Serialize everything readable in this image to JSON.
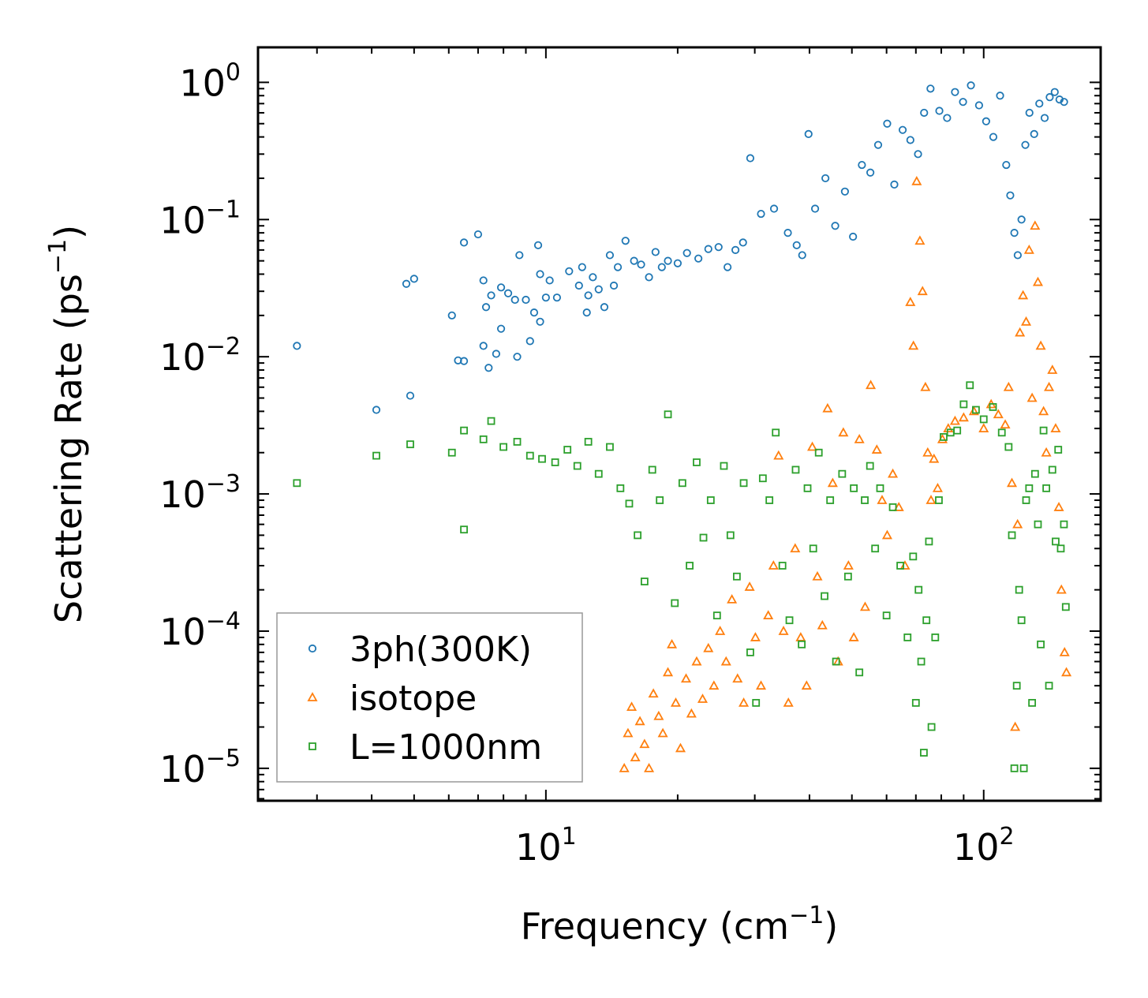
{
  "chart_data": {
    "type": "scatter",
    "title": "",
    "xlabel": "Frequency (cm",
    "xlabel_exp": "−1",
    "xlabel_tail": ")",
    "ylabel": "Scattering Rate (ps",
    "ylabel_exp": "−1",
    "ylabel_tail": ")",
    "xscale": "log",
    "yscale": "log",
    "xlim": [
      2.2,
      185
    ],
    "ylim": [
      5.8e-06,
      1.8
    ],
    "x_ticks": [
      {
        "value": 10,
        "base": "10",
        "exp": "1"
      },
      {
        "value": 100,
        "base": "10",
        "exp": "2"
      }
    ],
    "y_ticks": [
      {
        "value": 1,
        "base": "10",
        "exp": "0"
      },
      {
        "value": 0.1,
        "base": "10",
        "exp": "−1"
      },
      {
        "value": 0.01,
        "base": "10",
        "exp": "−2"
      },
      {
        "value": 0.001,
        "base": "10",
        "exp": "−3"
      },
      {
        "value": 0.0001,
        "base": "10",
        "exp": "−4"
      },
      {
        "value": 1e-05,
        "base": "10",
        "exp": "−5"
      }
    ],
    "legend_position": "lower-left",
    "series": [
      {
        "name": "3ph(300K)",
        "marker": "circle",
        "color": "#1f77b4",
        "points": [
          [
            2.7,
            0.012
          ],
          [
            4.1,
            0.0041
          ],
          [
            4.8,
            0.034
          ],
          [
            4.9,
            0.0052
          ],
          [
            5.0,
            0.037
          ],
          [
            6.1,
            0.02
          ],
          [
            6.3,
            0.0094
          ],
          [
            6.5,
            0.0093
          ],
          [
            6.5,
            0.068
          ],
          [
            7.0,
            0.078
          ],
          [
            7.2,
            0.036
          ],
          [
            7.2,
            0.012
          ],
          [
            7.3,
            0.023
          ],
          [
            7.4,
            0.0083
          ],
          [
            7.5,
            0.028
          ],
          [
            7.7,
            0.0105
          ],
          [
            7.9,
            0.016
          ],
          [
            7.9,
            0.032
          ],
          [
            8.2,
            0.029
          ],
          [
            8.5,
            0.026
          ],
          [
            8.6,
            0.01
          ],
          [
            8.7,
            0.055
          ],
          [
            9.0,
            0.026
          ],
          [
            9.2,
            0.013
          ],
          [
            9.4,
            0.021
          ],
          [
            9.6,
            0.065
          ],
          [
            9.7,
            0.04
          ],
          [
            9.7,
            0.018
          ],
          [
            10.0,
            0.027
          ],
          [
            10.2,
            0.036
          ],
          [
            10.6,
            0.027
          ],
          [
            11.3,
            0.042
          ],
          [
            11.9,
            0.033
          ],
          [
            12.1,
            0.045
          ],
          [
            12.4,
            0.021
          ],
          [
            12.5,
            0.028
          ],
          [
            12.8,
            0.038
          ],
          [
            13.2,
            0.031
          ],
          [
            13.6,
            0.023
          ],
          [
            14.0,
            0.055
          ],
          [
            14.3,
            0.033
          ],
          [
            14.6,
            0.045
          ],
          [
            15.2,
            0.07
          ],
          [
            15.9,
            0.05
          ],
          [
            16.5,
            0.047
          ],
          [
            17.2,
            0.038
          ],
          [
            17.8,
            0.058
          ],
          [
            18.4,
            0.045
          ],
          [
            19.0,
            0.05
          ],
          [
            20.0,
            0.048
          ],
          [
            21.0,
            0.057
          ],
          [
            22.3,
            0.052
          ],
          [
            23.5,
            0.061
          ],
          [
            24.8,
            0.063
          ],
          [
            26.0,
            0.045
          ],
          [
            27.1,
            0.06
          ],
          [
            28.2,
            0.068
          ],
          [
            29.3,
            0.28
          ],
          [
            31.0,
            0.11
          ],
          [
            33.2,
            0.12
          ],
          [
            35.7,
            0.08
          ],
          [
            37.4,
            0.065
          ],
          [
            38.5,
            0.055
          ],
          [
            39.8,
            0.42
          ],
          [
            41.2,
            0.12
          ],
          [
            43.5,
            0.2
          ],
          [
            45.8,
            0.09
          ],
          [
            48.2,
            0.16
          ],
          [
            50.3,
            0.075
          ],
          [
            52.7,
            0.25
          ],
          [
            55.1,
            0.22
          ],
          [
            57.4,
            0.35
          ],
          [
            60.2,
            0.5
          ],
          [
            62.5,
            0.18
          ],
          [
            65.3,
            0.45
          ],
          [
            68.0,
            0.38
          ],
          [
            70.8,
            0.3
          ],
          [
            73.1,
            0.6
          ],
          [
            75.6,
            0.9
          ],
          [
            79.2,
            0.62
          ],
          [
            82.5,
            0.55
          ],
          [
            86.0,
            0.85
          ],
          [
            89.7,
            0.72
          ],
          [
            93.5,
            0.95
          ],
          [
            97.6,
            0.68
          ],
          [
            101.3,
            0.52
          ],
          [
            105.2,
            0.4
          ],
          [
            109.0,
            0.8
          ],
          [
            112.6,
            0.25
          ],
          [
            115.0,
            0.15
          ],
          [
            117.5,
            0.08
          ],
          [
            119.6,
            0.055
          ],
          [
            122.0,
            0.1
          ],
          [
            124.5,
            0.35
          ],
          [
            127.2,
            0.6
          ],
          [
            130.4,
            0.42
          ],
          [
            134.0,
            0.7
          ],
          [
            137.8,
            0.55
          ],
          [
            141.5,
            0.78
          ],
          [
            145.3,
            0.85
          ],
          [
            149.0,
            0.75
          ],
          [
            152.6,
            0.72
          ]
        ]
      },
      {
        "name": "isotope",
        "marker": "triangle",
        "color": "#ff7f0e",
        "points": [
          [
            15.1,
            1e-05
          ],
          [
            15.4,
            1.8e-05
          ],
          [
            15.7,
            2.8e-05
          ],
          [
            16.0,
            1.2e-05
          ],
          [
            16.4,
            2.2e-05
          ],
          [
            16.8,
            1.5e-05
          ],
          [
            17.2,
            1e-05
          ],
          [
            17.6,
            3.5e-05
          ],
          [
            18.1,
            2.4e-05
          ],
          [
            18.5,
            1.8e-05
          ],
          [
            19.0,
            5e-05
          ],
          [
            19.4,
            8e-05
          ],
          [
            19.8,
            3e-05
          ],
          [
            20.3,
            1.4e-05
          ],
          [
            20.9,
            4.5e-05
          ],
          [
            21.5,
            2.5e-05
          ],
          [
            22.1,
            6e-05
          ],
          [
            22.8,
            3.2e-05
          ],
          [
            23.5,
            7.5e-05
          ],
          [
            24.2,
            4e-05
          ],
          [
            25.0,
            0.0001
          ],
          [
            25.8,
            6e-05
          ],
          [
            26.6,
            0.00017
          ],
          [
            27.4,
            4.5e-05
          ],
          [
            28.3,
            3e-05
          ],
          [
            29.2,
            0.00021
          ],
          [
            30.1,
            9e-05
          ],
          [
            31.0,
            4e-05
          ],
          [
            32.2,
            0.00013
          ],
          [
            33.1,
            0.0003
          ],
          [
            34.0,
            0.0019
          ],
          [
            34.9,
            0.0001
          ],
          [
            35.8,
            3e-05
          ],
          [
            37.1,
            0.0004
          ],
          [
            38.2,
            9e-05
          ],
          [
            39.4,
            4e-05
          ],
          [
            40.6,
            0.0022
          ],
          [
            41.7,
            0.00025
          ],
          [
            42.8,
            0.00011
          ],
          [
            44.0,
            0.0042
          ],
          [
            45.2,
            0.0012
          ],
          [
            46.5,
            6e-05
          ],
          [
            47.8,
            0.0028
          ],
          [
            49.1,
            0.0003
          ],
          [
            50.5,
            9e-05
          ],
          [
            52.0,
            0.0025
          ],
          [
            53.6,
            0.00015
          ],
          [
            55.2,
            0.0062
          ],
          [
            57.0,
            0.0021
          ],
          [
            58.6,
            0.0009
          ],
          [
            60.2,
            0.0005
          ],
          [
            62.0,
            0.0014
          ],
          [
            64.0,
            0.0008
          ],
          [
            66.1,
            0.0003
          ],
          [
            68.0,
            0.025
          ],
          [
            69.1,
            0.012
          ],
          [
            70.3,
            0.19
          ],
          [
            71.5,
            0.07
          ],
          [
            72.5,
            0.03
          ],
          [
            73.6,
            0.006
          ],
          [
            74.5,
            0.002
          ],
          [
            75.8,
            0.0009
          ],
          [
            77.0,
            0.0018
          ],
          [
            78.5,
            0.0011
          ],
          [
            80.5,
            0.0025
          ],
          [
            83.0,
            0.003
          ],
          [
            86.0,
            0.0034
          ],
          [
            90.0,
            0.0036
          ],
          [
            95.0,
            0.004
          ],
          [
            100.0,
            0.003
          ],
          [
            104.0,
            0.0045
          ],
          [
            108.0,
            0.0038
          ],
          [
            112.0,
            0.0032
          ],
          [
            114.0,
            0.006
          ],
          [
            116.0,
            0.0012
          ],
          [
            118.0,
            2e-05
          ],
          [
            119.5,
            0.0006
          ],
          [
            121.0,
            0.015
          ],
          [
            123.0,
            0.028
          ],
          [
            125.0,
            0.018
          ],
          [
            127.0,
            0.06
          ],
          [
            129.0,
            0.005
          ],
          [
            131.0,
            0.09
          ],
          [
            133.0,
            0.035
          ],
          [
            135.0,
            0.012
          ],
          [
            137.0,
            0.004
          ],
          [
            139.0,
            0.002
          ],
          [
            141.0,
            0.006
          ],
          [
            143.5,
            0.008
          ],
          [
            146.0,
            0.003
          ],
          [
            148.5,
            0.0008
          ],
          [
            150.5,
            0.0002
          ],
          [
            153.0,
            7e-05
          ],
          [
            154.5,
            5e-05
          ]
        ]
      },
      {
        "name": "L=1000nm",
        "marker": "square",
        "color": "#2ca02c",
        "points": [
          [
            2.7,
            0.0012
          ],
          [
            4.1,
            0.0019
          ],
          [
            4.9,
            0.0023
          ],
          [
            6.1,
            0.002
          ],
          [
            6.5,
            0.00055
          ],
          [
            6.5,
            0.0029
          ],
          [
            7.2,
            0.0025
          ],
          [
            7.5,
            0.0034
          ],
          [
            8.0,
            0.0022
          ],
          [
            8.6,
            0.0024
          ],
          [
            9.2,
            0.0019
          ],
          [
            9.8,
            0.0018
          ],
          [
            10.5,
            0.0017
          ],
          [
            11.2,
            0.0021
          ],
          [
            11.8,
            0.0016
          ],
          [
            12.5,
            0.0024
          ],
          [
            13.2,
            0.0014
          ],
          [
            14.0,
            0.0022
          ],
          [
            14.8,
            0.0011
          ],
          [
            15.5,
            0.00085
          ],
          [
            16.2,
            0.0005
          ],
          [
            16.8,
            0.00023
          ],
          [
            17.5,
            0.0015
          ],
          [
            18.2,
            0.0009
          ],
          [
            19.0,
            0.0038
          ],
          [
            19.7,
            0.00016
          ],
          [
            20.5,
            0.0012
          ],
          [
            21.3,
            0.0003
          ],
          [
            22.1,
            0.0017
          ],
          [
            22.9,
            0.00048
          ],
          [
            23.8,
            0.0009
          ],
          [
            24.6,
            0.00013
          ],
          [
            25.5,
            0.0016
          ],
          [
            26.4,
            0.0005
          ],
          [
            27.3,
            0.00025
          ],
          [
            28.3,
            0.0012
          ],
          [
            29.3,
            7e-05
          ],
          [
            30.2,
            3e-05
          ],
          [
            31.3,
            0.0013
          ],
          [
            32.4,
            0.0009
          ],
          [
            33.5,
            0.0028
          ],
          [
            34.7,
            0.0003
          ],
          [
            36.0,
            0.00012
          ],
          [
            37.2,
            0.0015
          ],
          [
            38.4,
            8e-05
          ],
          [
            39.6,
            0.0011
          ],
          [
            40.8,
            0.0004
          ],
          [
            42.0,
            0.002
          ],
          [
            43.3,
            0.00018
          ],
          [
            44.6,
            0.0009
          ],
          [
            46.0,
            6e-05
          ],
          [
            47.5,
            0.0014
          ],
          [
            49.0,
            0.00025
          ],
          [
            50.5,
            0.0011
          ],
          [
            52.0,
            5e-05
          ],
          [
            53.5,
            0.0009
          ],
          [
            55.0,
            0.0016
          ],
          [
            56.5,
            0.0004
          ],
          [
            58.0,
            0.0011
          ],
          [
            60.0,
            0.00013
          ],
          [
            62.0,
            0.0008
          ],
          [
            64.5,
            0.0003
          ],
          [
            67.0,
            9e-05
          ],
          [
            69.0,
            0.00035
          ],
          [
            70.0,
            3e-05
          ],
          [
            71.0,
            0.0002
          ],
          [
            72.0,
            6e-05
          ],
          [
            73.0,
            1.3e-05
          ],
          [
            74.0,
            0.00012
          ],
          [
            75.0,
            0.00045
          ],
          [
            76.0,
            2e-05
          ],
          [
            77.5,
            9e-05
          ],
          [
            79.0,
            0.0009
          ],
          [
            81.0,
            0.0026
          ],
          [
            84.0,
            0.0028
          ],
          [
            87.0,
            0.0029
          ],
          [
            90.0,
            0.0045
          ],
          [
            93.0,
            0.0062
          ],
          [
            96.0,
            0.0041
          ],
          [
            100.0,
            0.0035
          ],
          [
            105.0,
            0.0043
          ],
          [
            110.0,
            0.0028
          ],
          [
            114.0,
            0.0022
          ],
          [
            116.0,
            0.0005
          ],
          [
            117.5,
            1e-05
          ],
          [
            119.0,
            4e-05
          ],
          [
            120.5,
            0.0002
          ],
          [
            122.0,
            0.00012
          ],
          [
            123.5,
            1e-05
          ],
          [
            125.0,
            0.0009
          ],
          [
            127.0,
            0.0011
          ],
          [
            129.0,
            3e-05
          ],
          [
            131.0,
            0.0014
          ],
          [
            133.0,
            0.0006
          ],
          [
            135.0,
            8e-05
          ],
          [
            137.0,
            0.0029
          ],
          [
            139.0,
            0.0011
          ],
          [
            141.0,
            4e-05
          ],
          [
            143.5,
            0.0015
          ],
          [
            146.0,
            0.00045
          ],
          [
            148.0,
            0.0021
          ],
          [
            150.0,
            0.0004
          ],
          [
            152.5,
            0.0006
          ],
          [
            154.0,
            0.00015
          ]
        ]
      }
    ]
  }
}
